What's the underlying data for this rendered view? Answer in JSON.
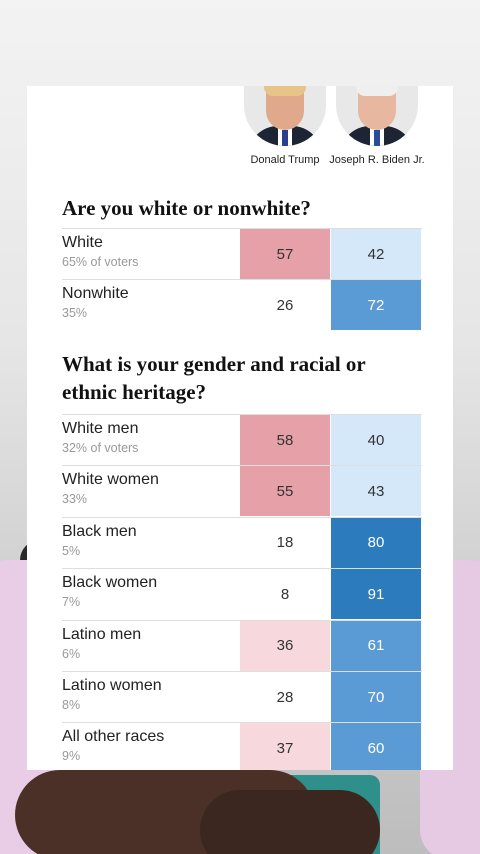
{
  "candidates": [
    {
      "name": "Donald Trump"
    },
    {
      "name": "Joseph R. Biden Jr."
    }
  ],
  "sections": [
    {
      "question": "Are you white or nonwhite?",
      "rows": [
        {
          "label": "White",
          "sub": "65% of voters",
          "trump": "57",
          "biden": "42"
        },
        {
          "label": "Nonwhite",
          "sub": "35%",
          "trump": "26",
          "biden": "72"
        }
      ]
    },
    {
      "question": "What is your gender and racial or ethnic heritage?",
      "rows": [
        {
          "label": "White men",
          "sub": "32% of voters",
          "trump": "58",
          "biden": "40"
        },
        {
          "label": "White women",
          "sub": "33%",
          "trump": "55",
          "biden": "43"
        },
        {
          "label": "Black men",
          "sub": "5%",
          "trump": "18",
          "biden": "80"
        },
        {
          "label": "Black women",
          "sub": "7%",
          "trump": "8",
          "biden": "91"
        },
        {
          "label": "Latino men",
          "sub": "6%",
          "trump": "36",
          "biden": "61"
        },
        {
          "label": "Latino women",
          "sub": "8%",
          "trump": "28",
          "biden": "70"
        },
        {
          "label": "All other races",
          "sub": "9%",
          "trump": "37",
          "biden": "60"
        }
      ]
    }
  ],
  "colors": {
    "trump_strong": "#e6a1a8",
    "trump_light": "#f7d9dd",
    "biden_light": "#d5e8f9",
    "biden_mid": "#5b9bd5",
    "biden_strong": "#2b7bbd"
  }
}
